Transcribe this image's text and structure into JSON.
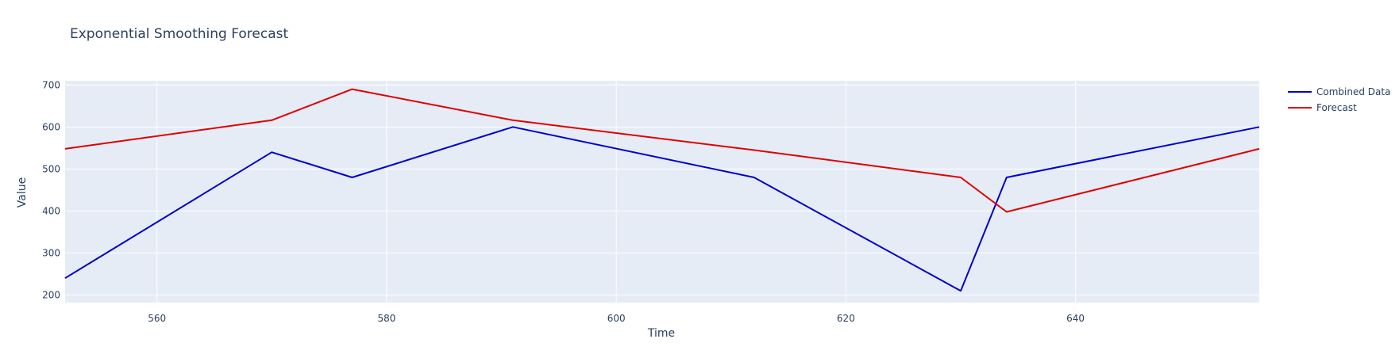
{
  "chart_data": {
    "type": "line",
    "title": "Exponential Smoothing Forecast",
    "xlabel": "Time",
    "ylabel": "Value",
    "xlim": [
      552,
      656
    ],
    "ylim": [
      182,
      710
    ],
    "x_ticks": [
      560,
      580,
      600,
      620,
      640
    ],
    "y_ticks": [
      200,
      300,
      400,
      500,
      600,
      700
    ],
    "grid": true,
    "legend_position": "top-right",
    "plot_background": "#e5ecf6",
    "series": [
      {
        "name": "Combined Data",
        "color": "#0000cc",
        "x": [
          552,
          570,
          577,
          591,
          612,
          630,
          634,
          656
        ],
        "y": [
          240,
          540,
          480,
          600,
          480,
          210,
          480,
          600
        ]
      },
      {
        "name": "Forecast",
        "color": "#e00000",
        "x": [
          552,
          570,
          577,
          591,
          612,
          630,
          634,
          656
        ],
        "y": [
          548,
          616,
          690,
          616,
          545,
          480,
          398,
          548
        ]
      }
    ]
  }
}
